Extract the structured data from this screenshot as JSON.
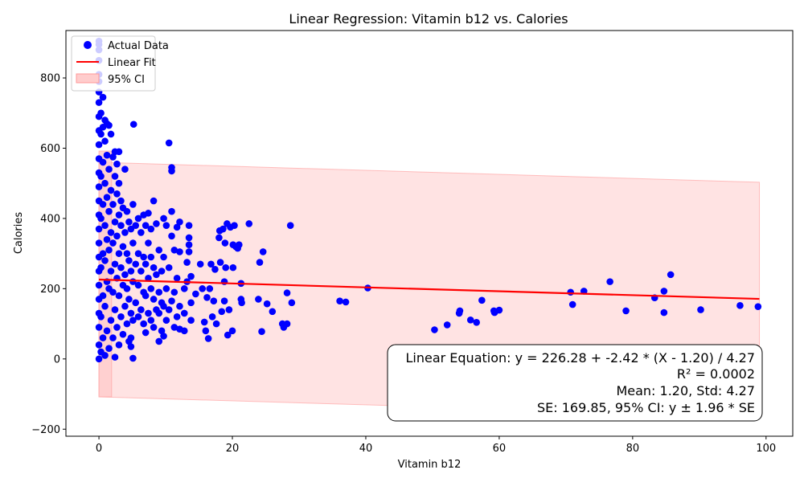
{
  "chart_data": {
    "type": "scatter",
    "title": "Linear Regression: Vitamin b12 vs. Calories",
    "xlabel": "Vitamin b12",
    "ylabel": "Calories",
    "xlim": [
      -4.95,
      104.0
    ],
    "ylim": [
      -220,
      935
    ],
    "xticks": [
      0,
      20,
      40,
      60,
      80,
      100
    ],
    "yticks": [
      -200,
      0,
      200,
      400,
      600,
      800
    ],
    "grid": false,
    "legend_position": "top-left",
    "colors": {
      "points": "#0000ff",
      "fit": "#ff0000",
      "ci_fill": "#ffcccc",
      "ci_edge": "#ff9999"
    },
    "series": [
      {
        "name": "Actual Data",
        "type": "scatter",
        "points": [
          [
            0,
            0
          ],
          [
            0,
            40
          ],
          [
            0,
            90
          ],
          [
            0,
            130
          ],
          [
            0,
            170
          ],
          [
            0,
            210
          ],
          [
            0,
            250
          ],
          [
            0,
            290
          ],
          [
            0,
            330
          ],
          [
            0,
            370
          ],
          [
            0,
            410
          ],
          [
            0,
            450
          ],
          [
            0,
            490
          ],
          [
            0,
            530
          ],
          [
            0,
            570
          ],
          [
            0,
            610
          ],
          [
            0,
            650
          ],
          [
            0,
            690
          ],
          [
            0,
            730
          ],
          [
            0,
            760
          ],
          [
            0,
            790
          ],
          [
            0,
            810
          ],
          [
            0,
            850
          ],
          [
            0,
            880
          ],
          [
            0,
            895
          ],
          [
            0,
            905
          ],
          [
            0.3,
            20
          ],
          [
            0.3,
            120
          ],
          [
            0.3,
            260
          ],
          [
            0.3,
            400
          ],
          [
            0.3,
            520
          ],
          [
            0.3,
            640
          ],
          [
            0.3,
            700
          ],
          [
            0.6,
            60
          ],
          [
            0.6,
            180
          ],
          [
            0.6,
            300
          ],
          [
            0.6,
            440
          ],
          [
            0.6,
            560
          ],
          [
            0.6,
            660
          ],
          [
            0.6,
            745
          ],
          [
            0.9,
            10
          ],
          [
            0.9,
            150
          ],
          [
            0.9,
            280
          ],
          [
            0.9,
            380
          ],
          [
            0.9,
            500
          ],
          [
            0.9,
            620
          ],
          [
            0.9,
            680
          ],
          [
            1.2,
            80
          ],
          [
            1.2,
            220
          ],
          [
            1.2,
            340
          ],
          [
            1.2,
            460
          ],
          [
            1.2,
            580
          ],
          [
            1.2,
            670
          ],
          [
            1.5,
            30
          ],
          [
            1.5,
            200
          ],
          [
            1.5,
            310
          ],
          [
            1.5,
            420
          ],
          [
            1.5,
            540
          ],
          [
            1.5,
            665
          ],
          [
            1.8,
            110
          ],
          [
            1.8,
            250
          ],
          [
            1.8,
            360
          ],
          [
            1.8,
            480
          ],
          [
            1.8,
            640
          ],
          [
            2.1,
            60
          ],
          [
            2.1,
            190
          ],
          [
            2.1,
            330
          ],
          [
            2.1,
            440
          ],
          [
            2.1,
            575
          ],
          [
            2.4,
            5
          ],
          [
            2.4,
            140
          ],
          [
            2.4,
            270
          ],
          [
            2.4,
            390
          ],
          [
            2.4,
            520
          ],
          [
            2.4,
            590
          ],
          [
            2.7,
            90
          ],
          [
            2.7,
            230
          ],
          [
            2.7,
            350
          ],
          [
            2.7,
            470
          ],
          [
            2.7,
            555
          ],
          [
            3.0,
            40
          ],
          [
            3.0,
            180
          ],
          [
            3.0,
            300
          ],
          [
            3.0,
            410
          ],
          [
            3.0,
            500
          ],
          [
            3.0,
            590
          ],
          [
            3.3,
            120
          ],
          [
            3.3,
            260
          ],
          [
            3.3,
            380
          ],
          [
            3.3,
            450
          ],
          [
            3.6,
            70
          ],
          [
            3.6,
            210
          ],
          [
            3.6,
            320
          ],
          [
            3.6,
            430
          ],
          [
            3.9,
            150
          ],
          [
            3.9,
            240
          ],
          [
            3.9,
            360
          ],
          [
            3.9,
            540
          ],
          [
            4.2,
            100
          ],
          [
            4.2,
            200
          ],
          [
            4.2,
            300
          ],
          [
            4.2,
            420
          ],
          [
            4.5,
            50
          ],
          [
            4.5,
            170
          ],
          [
            4.5,
            280
          ],
          [
            4.5,
            390
          ],
          [
            4.8,
            35
          ],
          [
            4.8,
            130
          ],
          [
            4.8,
            250
          ],
          [
            4.8,
            370
          ],
          [
            4.8,
            60
          ],
          [
            5.1,
            2
          ],
          [
            5.1,
            110
          ],
          [
            5.1,
            220
          ],
          [
            5.1,
            330
          ],
          [
            5.1,
            440
          ],
          [
            5.2,
            668
          ],
          [
            5.5,
            160
          ],
          [
            5.5,
            270
          ],
          [
            5.5,
            380
          ],
          [
            5.9,
            120
          ],
          [
            5.9,
            210
          ],
          [
            5.9,
            300
          ],
          [
            5.9,
            400
          ],
          [
            6.3,
            140
          ],
          [
            6.3,
            250
          ],
          [
            6.3,
            360
          ],
          [
            6.7,
            100
          ],
          [
            6.7,
            190
          ],
          [
            6.7,
            290
          ],
          [
            6.7,
            410
          ],
          [
            7.0,
            75
          ],
          [
            7.0,
            180
          ],
          [
            7.0,
            270
          ],
          [
            7.0,
            380
          ],
          [
            7.4,
            130
          ],
          [
            7.4,
            230
          ],
          [
            7.4,
            330
          ],
          [
            7.4,
            415
          ],
          [
            7.8,
            110
          ],
          [
            7.8,
            200
          ],
          [
            7.8,
            290
          ],
          [
            7.8,
            370
          ],
          [
            8.2,
            90
          ],
          [
            8.2,
            170
          ],
          [
            8.2,
            260
          ],
          [
            8.2,
            450
          ],
          [
            8.6,
            140
          ],
          [
            8.6,
            240
          ],
          [
            8.6,
            385
          ],
          [
            9.0,
            50
          ],
          [
            9.0,
            130
          ],
          [
            9.0,
            190
          ],
          [
            9.0,
            310
          ],
          [
            9.4,
            80
          ],
          [
            9.4,
            160
          ],
          [
            9.4,
            250
          ],
          [
            9.7,
            65
          ],
          [
            9.7,
            150
          ],
          [
            9.7,
            290
          ],
          [
            9.7,
            400
          ],
          [
            10.1,
            110
          ],
          [
            10.1,
            200
          ],
          [
            10.1,
            380
          ],
          [
            10.5,
            615
          ],
          [
            10.5,
            140
          ],
          [
            10.5,
            260
          ],
          [
            10.9,
            545
          ],
          [
            10.9,
            535
          ],
          [
            10.9,
            420
          ],
          [
            10.9,
            350
          ],
          [
            10.9,
            165
          ],
          [
            11.3,
            90
          ],
          [
            11.3,
            190
          ],
          [
            11.3,
            310
          ],
          [
            11.7,
            120
          ],
          [
            11.7,
            230
          ],
          [
            11.7,
            375
          ],
          [
            12.1,
            85
          ],
          [
            12.1,
            150
          ],
          [
            12.1,
            390
          ],
          [
            12.1,
            305
          ],
          [
            12.8,
            80
          ],
          [
            12.8,
            130
          ],
          [
            12.8,
            200
          ],
          [
            13.2,
            220
          ],
          [
            13.2,
            275
          ],
          [
            13.5,
            325
          ],
          [
            13.5,
            305
          ],
          [
            13.5,
            345
          ],
          [
            13.5,
            380
          ],
          [
            13.8,
            110
          ],
          [
            13.8,
            160
          ],
          [
            13.8,
            235
          ],
          [
            14.5,
            185
          ],
          [
            15.2,
            270
          ],
          [
            15.5,
            200
          ],
          [
            15.8,
            105
          ],
          [
            16.0,
            80
          ],
          [
            16.2,
            175
          ],
          [
            16.4,
            58
          ],
          [
            16.6,
            200
          ],
          [
            16.8,
            270
          ],
          [
            17.0,
            120
          ],
          [
            17.2,
            165
          ],
          [
            17.4,
            255
          ],
          [
            17.6,
            100
          ],
          [
            18.0,
            345
          ],
          [
            18.1,
            365
          ],
          [
            18.2,
            275
          ],
          [
            18.4,
            135
          ],
          [
            18.6,
            370
          ],
          [
            18.8,
            165
          ],
          [
            18.8,
            220
          ],
          [
            18.9,
            330
          ],
          [
            19.0,
            260
          ],
          [
            19.2,
            385
          ],
          [
            19.3,
            68
          ],
          [
            19.5,
            140
          ],
          [
            19.7,
            375
          ],
          [
            20.0,
            80
          ],
          [
            20.1,
            325
          ],
          [
            20.1,
            260
          ],
          [
            20.3,
            380
          ],
          [
            20.5,
            320
          ],
          [
            20.8,
            315
          ],
          [
            21.0,
            325
          ],
          [
            21.3,
            215
          ],
          [
            21.3,
            170
          ],
          [
            21.4,
            160
          ],
          [
            22.5,
            385
          ],
          [
            23.9,
            170
          ],
          [
            24.1,
            275
          ],
          [
            24.4,
            78
          ],
          [
            24.6,
            305
          ],
          [
            25.2,
            157
          ],
          [
            26.0,
            135
          ],
          [
            27.5,
            100
          ],
          [
            27.7,
            90
          ],
          [
            28.2,
            100
          ],
          [
            28.2,
            188
          ],
          [
            28.7,
            380
          ],
          [
            28.9,
            160
          ],
          [
            36.1,
            165
          ],
          [
            37.0,
            162
          ],
          [
            40.3,
            202
          ],
          [
            50.3,
            83
          ],
          [
            52.2,
            97
          ],
          [
            54.0,
            130
          ],
          [
            54.1,
            137
          ],
          [
            55.7,
            111
          ],
          [
            56.6,
            104
          ],
          [
            57.4,
            167
          ],
          [
            59.2,
            137
          ],
          [
            59.3,
            132
          ],
          [
            60.0,
            139
          ],
          [
            70.7,
            190
          ],
          [
            71.0,
            155
          ],
          [
            72.7,
            193
          ],
          [
            76.6,
            220
          ],
          [
            79.0,
            137
          ],
          [
            83.3,
            174
          ],
          [
            84.7,
            132
          ],
          [
            84.7,
            193
          ],
          [
            85.7,
            240
          ],
          [
            90.2,
            140
          ],
          [
            96.1,
            152
          ],
          [
            98.8,
            149
          ]
        ]
      },
      {
        "name": "Linear Fit",
        "type": "line",
        "x": [
          0,
          99
        ],
        "y": [
          226.0,
          171.0
        ]
      },
      {
        "name": "95% CI",
        "type": "band",
        "x": [
          0,
          99
        ],
        "upper": [
          560.0,
          503.0
        ],
        "lower": [
          -108.0,
          -164.0
        ],
        "extra_band": {
          "x": [
            0.0,
            1.9
          ],
          "upper": [
            592.0,
            592.0
          ],
          "lower": [
            -108.0,
            -108.0
          ]
        }
      }
    ],
    "legend": [
      "Actual Data",
      "Linear Fit",
      "95% CI"
    ],
    "annotation": [
      "Linear Equation: y = 226.28 + -2.42 * (X - 1.20) / 4.27",
      "R² = 0.0002",
      "Mean: 1.20, Std: 4.27",
      "SE: 169.85, 95% CI: y ± 1.96 * SE"
    ]
  }
}
